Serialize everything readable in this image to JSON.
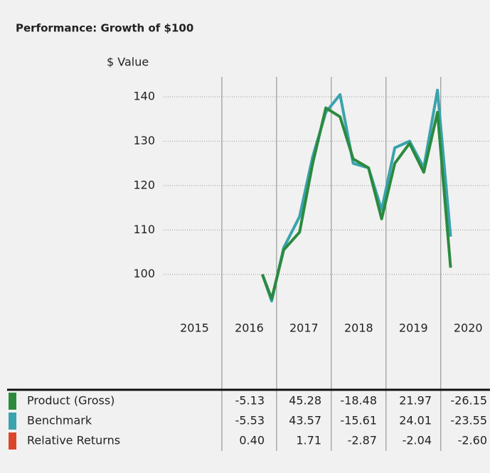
{
  "chart_data": {
    "type": "line",
    "title": "Performance: Growth of $100",
    "y_label": "$ Value",
    "x": [
      2016.74,
      2016.91,
      2017.13,
      2017.42,
      2017.66,
      2017.9,
      2018.16,
      2018.4,
      2018.68,
      2018.92,
      2019.16,
      2019.43,
      2019.69,
      2019.94,
      2020.18
    ],
    "series": [
      {
        "name": "Product (Gross)",
        "color": "#2b8a3e",
        "values": [
          100,
          94.5,
          105.5,
          109.5,
          125,
          137.5,
          135.5,
          126,
          124,
          112.5,
          125,
          129.5,
          123,
          136.5,
          101.5
        ]
      },
      {
        "name": "Benchmark",
        "color": "#3aa3ad",
        "values": [
          100,
          94,
          106,
          113,
          126.5,
          136.5,
          140.5,
          125,
          124,
          114.5,
          128.5,
          130,
          124,
          141.5,
          108.5
        ]
      }
    ],
    "xlim": [
      2015,
      2020.9
    ],
    "ylim": [
      74,
      144.5
    ],
    "yticks": [
      100,
      110,
      120,
      130,
      140
    ],
    "xticks": [
      {
        "value": 2015.5,
        "label": "2015"
      },
      {
        "value": 2016.5,
        "label": "2016"
      },
      {
        "value": 2017.5,
        "label": "2017"
      },
      {
        "value": 2018.5,
        "label": "2018"
      },
      {
        "value": 2019.5,
        "label": "2019"
      },
      {
        "value": 2020.5,
        "label": "2020"
      }
    ],
    "xgrid": [
      2016,
      2017,
      2018,
      2019,
      2020
    ],
    "table": {
      "rows": [
        {
          "name": "Product (Gross)",
          "color": "#2b8a3e",
          "values": [
            "-5.13",
            "45.28",
            "-18.48",
            "21.97",
            "-26.15"
          ]
        },
        {
          "name": "Benchmark",
          "color": "#3aa3ad",
          "values": [
            "-5.53",
            "43.57",
            "-15.61",
            "24.01",
            "-23.55"
          ]
        },
        {
          "name": "Relative Returns",
          "color": "#d9472b",
          "values": [
            "0.40",
            "1.71",
            "-2.87",
            "-2.04",
            "-2.60"
          ]
        }
      ]
    }
  }
}
